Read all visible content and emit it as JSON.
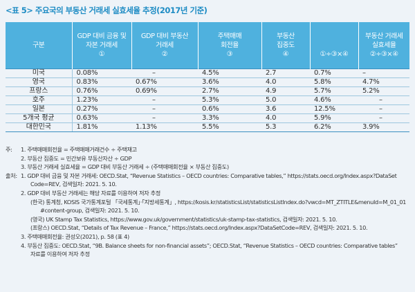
{
  "title": "<표 5> 주요국의 부동산 거래세 실효세율 추정(2017년 기준)",
  "table": {
    "headers": [
      [
        "구분"
      ],
      [
        "GDP 대비 금융 및",
        "자본 거래세",
        "①"
      ],
      [
        "GDP 대비 부동산",
        "거래세",
        "②"
      ],
      [
        "주택매매",
        "회전율",
        "③"
      ],
      [
        "부동산",
        "집중도",
        "④"
      ],
      [
        "①÷③×④"
      ],
      [
        "부동산 거래세",
        "실효세율",
        "②÷③×④"
      ]
    ],
    "rows": [
      [
        "미국",
        "0.08%",
        "–",
        "4.5%",
        "2.7",
        "0.7%",
        "–"
      ],
      [
        "영국",
        "0.83%",
        "0.67%",
        "3.6%",
        "4.0",
        "5.8%",
        "4.7%"
      ],
      [
        "프랑스",
        "0.76%",
        "0.69%",
        "2.7%",
        "4.9",
        "5.7%",
        "5.2%"
      ],
      [
        "호주",
        "1.23%",
        "–",
        "5.3%",
        "5.0",
        "4.6%",
        "–"
      ],
      [
        "일본",
        "0.27%",
        "–",
        "0.6%",
        "3.6",
        "12.5%",
        "–"
      ],
      [
        "5개국 평균",
        "0.63%",
        "–",
        "3.3%",
        "4.0",
        "5.9%",
        "–"
      ],
      [
        "대한민국",
        "1.81%",
        "1.13%",
        "5.5%",
        "5.3",
        "6.2%",
        "3.9%"
      ]
    ]
  },
  "notes": {
    "prefix_note": "주:",
    "prefix_source": "출처:",
    "items": [
      {
        "label": "1.",
        "text": "1. 주택매매회전율 = 주택매매거래건수 ÷ 주택재고"
      },
      {
        "label": "2.",
        "text": "2. 부동산 집중도 = 민간보유 부동산자산 ÷ GDP"
      },
      {
        "label": "3.",
        "text": "3. 부동산 거래세 실효세율 = GDP 대비 부동산 거래세 ÷ (주택매매회전율 × 부동산 집중도)"
      }
    ],
    "sources": [
      {
        "text": "1. GDP 대비 금융 및 자본 거래세: OECD.Stat, “Revenue Statistics – OECD countries: Comparative tables,” https://stats.oecd.org/Index.aspx?DataSet"
      },
      {
        "text": "Code=REV, 검색일자: 2021. 5. 10."
      },
      {
        "text": "2. GDP 대비 부동산 거래세는 해당 자료를 이용하여 저자 추정"
      },
      {
        "text": "(한국) 통계청, KOSIS 국가통계포털 「국세통계」·「지방세통계」, https://kosis.kr/statisticsList/statisticsListIndex.do?vwcd=MT_ZTITLE&menuId=M_01_01"
      },
      {
        "text": "#content-group, 검색일자: 2021. 5. 10."
      },
      {
        "text": "(영국) UK Stamp Tax Statistics, https://www.gov.uk/government/statistics/uk-stamp-tax-statistics, 검색일자: 2021. 5. 10."
      },
      {
        "text": "(프랑스) OECD.Stat, “Details of Tax Revenue – France,” https://stats.oecd.org/Index.aspx?DataSetCode=REV, 검색일자: 2021. 5. 10."
      },
      {
        "text": "3. 주택매매회전율: 권성오(2021), p. 58 (표 4)"
      },
      {
        "text": "4. 부동산 집중도: OECD.Stat, “9B. Balance sheets for non-financial assets”; OECD.Stat, “Revenue Statistics – OECD countries: Comparative tables”"
      },
      {
        "text": "자료를 이용하여 저자 추정"
      }
    ]
  }
}
